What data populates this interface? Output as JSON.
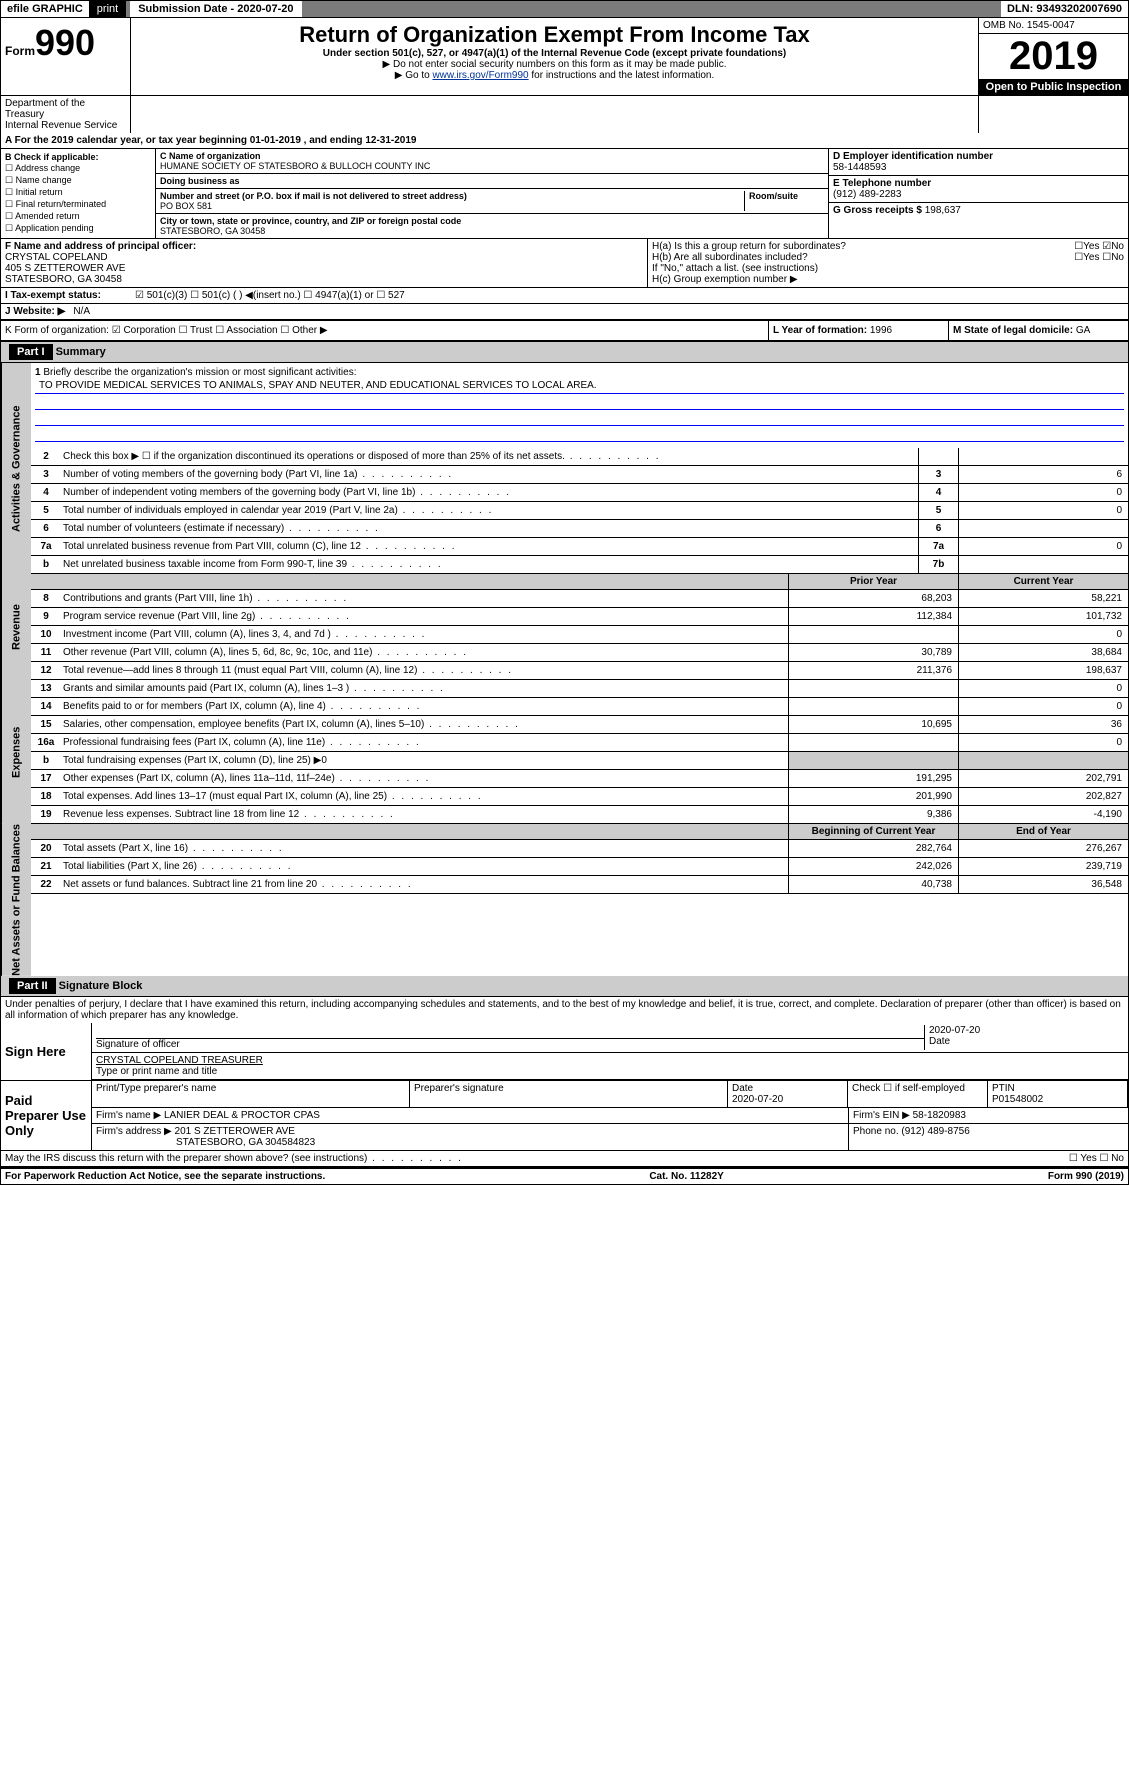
{
  "topbar": {
    "efile": "efile GRAPHIC",
    "print": "print",
    "subdate_label": "Submission Date - 2020-07-20",
    "dln": "DLN: 93493202007690"
  },
  "header": {
    "form_prefix": "Form",
    "form_number": "990",
    "title": "Return of Organization Exempt From Income Tax",
    "subtitle": "Under section 501(c), 527, or 4947(a)(1) of the Internal Revenue Code (except private foundations)",
    "note1": "▶ Do not enter social security numbers on this form as it may be made public.",
    "note2_pre": "▶ Go to ",
    "note2_link": "www.irs.gov/Form990",
    "note2_post": " for instructions and the latest information.",
    "dept1": "Department of the Treasury",
    "dept2": "Internal Revenue Service",
    "omb": "OMB No. 1545-0047",
    "year": "2019",
    "open": "Open to Public Inspection"
  },
  "rowA": "A For the 2019 calendar year, or tax year beginning 01-01-2019   , and ending 12-31-2019",
  "secB": {
    "title": "B Check if applicable:",
    "items": [
      "☐ Address change",
      "☐ Name change",
      "☐ Initial return",
      "☐ Final return/terminated",
      "☐ Amended return",
      "☐ Application pending"
    ]
  },
  "secC": {
    "name_lbl": "C Name of organization",
    "name": "HUMANE SOCIETY OF STATESBORO & BULLOCH COUNTY INC",
    "dba_lbl": "Doing business as",
    "dba": "",
    "addr_lbl": "Number and street (or P.O. box if mail is not delivered to street address)",
    "room_lbl": "Room/suite",
    "addr": "PO BOX 581",
    "city_lbl": "City or town, state or province, country, and ZIP or foreign postal code",
    "city": "STATESBORO, GA  30458"
  },
  "secD": {
    "lbl": "D Employer identification number",
    "val": "58-1448593"
  },
  "secE": {
    "lbl": "E Telephone number",
    "val": "(912) 489-2283"
  },
  "secG": {
    "lbl": "G Gross receipts $",
    "val": "198,637"
  },
  "secF": {
    "lbl": "F  Name and address of principal officer:",
    "name": "CRYSTAL COPELAND",
    "addr1": "405 S ZETTEROWER AVE",
    "addr2": "STATESBORO, GA  30458"
  },
  "secH": {
    "ha": "H(a)  Is this a group return for subordinates?",
    "ha_ans": "☐Yes ☑No",
    "hb": "H(b)  Are all subordinates included?",
    "hb_ans": "☐Yes ☐No",
    "hb_note": "If \"No,\" attach a list. (see instructions)",
    "hc": "H(c)  Group exemption number ▶"
  },
  "secI": {
    "lbl": "I   Tax-exempt status:",
    "opts": "☑ 501(c)(3)   ☐  501(c) (  ) ◀(insert no.)    ☐ 4947(a)(1) or   ☐ 527"
  },
  "secJ": {
    "lbl": "J   Website: ▶",
    "val": "N/A"
  },
  "secK": {
    "lbl": "K Form of organization:  ☑ Corporation ☐ Trust ☐ Association ☐ Other ▶"
  },
  "secL": {
    "lbl": "L Year of formation:",
    "val": "1996"
  },
  "secM": {
    "lbl": "M State of legal domicile:",
    "val": "GA"
  },
  "part1": {
    "hdr": "Part I",
    "title": "Summary"
  },
  "tabs": {
    "gov": "Activities & Governance",
    "rev": "Revenue",
    "exp": "Expenses",
    "net": "Net Assets or Fund Balances"
  },
  "q1": {
    "num": "1",
    "desc": "Briefly describe the organization's mission or most significant activities:",
    "mission": "TO PROVIDE MEDICAL SERVICES TO ANIMALS, SPAY AND NEUTER, AND EDUCATIONAL SERVICES TO LOCAL AREA."
  },
  "lines_gov": [
    {
      "n": "2",
      "d": "Check this box ▶ ☐  if the organization discontinued its operations or disposed of more than 25% of its net assets.",
      "b": "",
      "v": ""
    },
    {
      "n": "3",
      "d": "Number of voting members of the governing body (Part VI, line 1a)",
      "b": "3",
      "v": "6"
    },
    {
      "n": "4",
      "d": "Number of independent voting members of the governing body (Part VI, line 1b)",
      "b": "4",
      "v": "0"
    },
    {
      "n": "5",
      "d": "Total number of individuals employed in calendar year 2019 (Part V, line 2a)",
      "b": "5",
      "v": "0"
    },
    {
      "n": "6",
      "d": "Total number of volunteers (estimate if necessary)",
      "b": "6",
      "v": ""
    },
    {
      "n": "7a",
      "d": "Total unrelated business revenue from Part VIII, column (C), line 12",
      "b": "7a",
      "v": "0"
    },
    {
      "n": "b",
      "d": "Net unrelated business taxable income from Form 990-T, line 39",
      "b": "7b",
      "v": ""
    }
  ],
  "col_hdrs": {
    "prior": "Prior Year",
    "current": "Current Year"
  },
  "lines_rev": [
    {
      "n": "8",
      "d": "Contributions and grants (Part VIII, line 1h)",
      "p": "68,203",
      "c": "58,221"
    },
    {
      "n": "9",
      "d": "Program service revenue (Part VIII, line 2g)",
      "p": "112,384",
      "c": "101,732"
    },
    {
      "n": "10",
      "d": "Investment income (Part VIII, column (A), lines 3, 4, and 7d )",
      "p": "",
      "c": "0"
    },
    {
      "n": "11",
      "d": "Other revenue (Part VIII, column (A), lines 5, 6d, 8c, 9c, 10c, and 11e)",
      "p": "30,789",
      "c": "38,684"
    },
    {
      "n": "12",
      "d": "Total revenue—add lines 8 through 11 (must equal Part VIII, column (A), line 12)",
      "p": "211,376",
      "c": "198,637"
    }
  ],
  "lines_exp": [
    {
      "n": "13",
      "d": "Grants and similar amounts paid (Part IX, column (A), lines 1–3 )",
      "p": "",
      "c": "0"
    },
    {
      "n": "14",
      "d": "Benefits paid to or for members (Part IX, column (A), line 4)",
      "p": "",
      "c": "0"
    },
    {
      "n": "15",
      "d": "Salaries, other compensation, employee benefits (Part IX, column (A), lines 5–10)",
      "p": "10,695",
      "c": "36"
    },
    {
      "n": "16a",
      "d": "Professional fundraising fees (Part IX, column (A), line 11e)",
      "p": "",
      "c": "0"
    },
    {
      "n": "b",
      "d": "Total fundraising expenses (Part IX, column (D), line 25) ▶0",
      "p": "—",
      "c": "—"
    },
    {
      "n": "17",
      "d": "Other expenses (Part IX, column (A), lines 11a–11d, 11f–24e)",
      "p": "191,295",
      "c": "202,791"
    },
    {
      "n": "18",
      "d": "Total expenses. Add lines 13–17 (must equal Part IX, column (A), line 25)",
      "p": "201,990",
      "c": "202,827"
    },
    {
      "n": "19",
      "d": "Revenue less expenses. Subtract line 18 from line 12",
      "p": "9,386",
      "c": "-4,190"
    }
  ],
  "col_hdrs2": {
    "begin": "Beginning of Current Year",
    "end": "End of Year"
  },
  "lines_net": [
    {
      "n": "20",
      "d": "Total assets (Part X, line 16)",
      "p": "282,764",
      "c": "276,267"
    },
    {
      "n": "21",
      "d": "Total liabilities (Part X, line 26)",
      "p": "242,026",
      "c": "239,719"
    },
    {
      "n": "22",
      "d": "Net assets or fund balances. Subtract line 21 from line 20",
      "p": "40,738",
      "c": "36,548"
    }
  ],
  "part2": {
    "hdr": "Part II",
    "title": "Signature Block"
  },
  "sig": {
    "decl": "Under penalties of perjury, I declare that I have examined this return, including accompanying schedules and statements, and to the best of my knowledge and belief, it is true, correct, and complete. Declaration of preparer (other than officer) is based on all information of which preparer has any knowledge.",
    "sign_here": "Sign Here",
    "sig_officer": "Signature of officer",
    "date": "2020-07-20",
    "date_lbl": "Date",
    "name_title": "CRYSTAL COPELAND TREASURER",
    "name_lbl": "Type or print name and title"
  },
  "paid": {
    "title": "Paid Preparer Use Only",
    "h1": "Print/Type preparer's name",
    "h2": "Preparer's signature",
    "h3": "Date",
    "h3v": "2020-07-20",
    "h4": "Check ☐ if self-employed",
    "h5": "PTIN",
    "h5v": "P01548002",
    "firm_lbl": "Firm's name    ▶",
    "firm": "LANIER DEAL & PROCTOR CPAS",
    "ein_lbl": "Firm's EIN ▶",
    "ein": "58-1820983",
    "addr_lbl": "Firm's address ▶",
    "addr": "201 S ZETTEROWER AVE",
    "addr2": "STATESBORO, GA  304584823",
    "phone_lbl": "Phone no.",
    "phone": "(912) 489-8756"
  },
  "discuss": "May the IRS discuss this return with the preparer shown above? (see instructions)",
  "discuss_ans": "☐ Yes  ☐ No",
  "footer": {
    "left": "For Paperwork Reduction Act Notice, see the separate instructions.",
    "mid": "Cat. No. 11282Y",
    "right": "Form 990 (2019)"
  }
}
